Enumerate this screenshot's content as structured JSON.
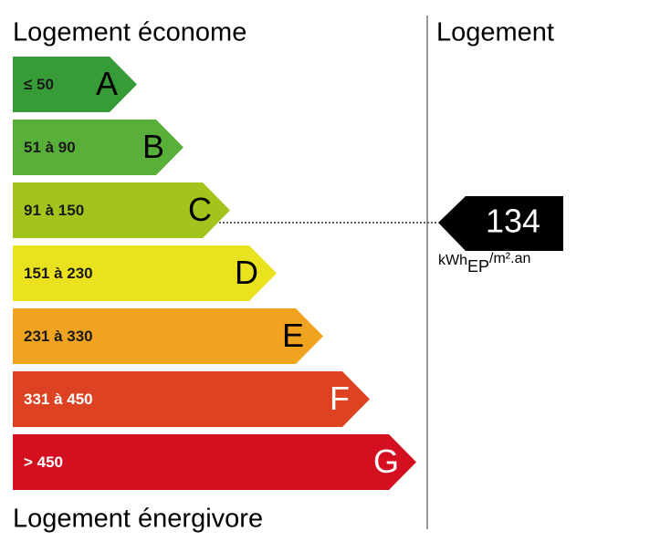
{
  "header": {
    "left": "Logement économe",
    "right": "Logement"
  },
  "footer": "Logement énergivore",
  "classes": [
    {
      "range": "≤ 50",
      "letter": "A",
      "color": "#379c38"
    },
    {
      "range": "51 à 90",
      "letter": "B",
      "color": "#58b03a"
    },
    {
      "range": "91 à 150",
      "letter": "C",
      "color": "#a2c41c"
    },
    {
      "range": "151 à 230",
      "letter": "D",
      "color": "#ebe21f"
    },
    {
      "range": "231 à 330",
      "letter": "E",
      "color": "#f0a31f"
    },
    {
      "range": "331 à 450",
      "letter": "F",
      "color": "#dd4322"
    },
    {
      "range": "> 450",
      "letter": "G",
      "color": "#d40f20"
    }
  ],
  "indicator": {
    "value": "134",
    "unit": "kWh",
    "unit_sub": "EP",
    "unit_suffix": "/m².an"
  }
}
